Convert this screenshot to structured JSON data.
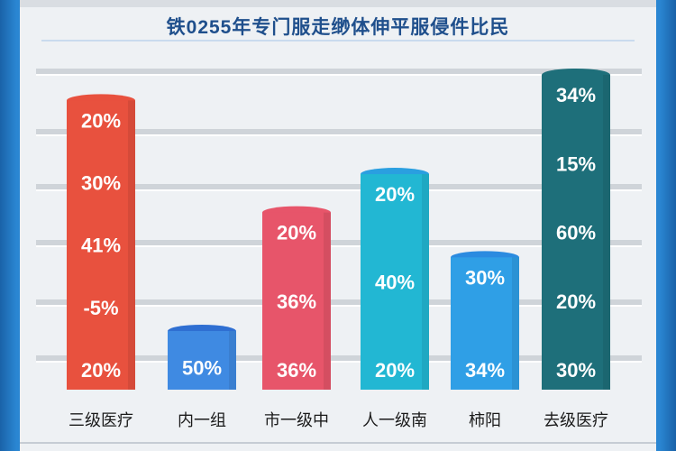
{
  "header": {
    "subtitle": "铁0255年专门服走缈体伸平服侵件比民"
  },
  "chart_data": {
    "type": "bar",
    "title": "",
    "xlabel": "",
    "ylabel": "",
    "grid": true,
    "ylim": [
      0,
      100
    ],
    "categories": [
      "三级医疗",
      "内一组",
      "市一级中",
      "人一级南",
      "柿阳",
      "去级医疗"
    ],
    "bar_tops": [
      92,
      20,
      57,
      69,
      43,
      100
    ],
    "cap_labels": [
      "",
      "",
      "",
      "",
      "",
      ""
    ],
    "segment_labels": [
      [
        "20%",
        "30%",
        "41%",
        "-5%",
        "20%"
      ],
      [
        "50%"
      ],
      [
        "20%",
        "36%",
        "36%"
      ],
      [
        "20%",
        "40%",
        "20%"
      ],
      [
        "30%",
        "34%"
      ],
      [
        "34%",
        "15%",
        "60%",
        "20%",
        "30%"
      ]
    ],
    "colors": [
      "#e8513e",
      "#3f8ae2",
      "#e7556a",
      "#22b7d3",
      "#2f9fe6",
      "#1e6f7a"
    ],
    "cap_colors": [
      "#e8513e",
      "#2f6fd2",
      "#e7556a",
      "#2a9fe0",
      "#2b8be0",
      "#1e6f7a"
    ]
  }
}
